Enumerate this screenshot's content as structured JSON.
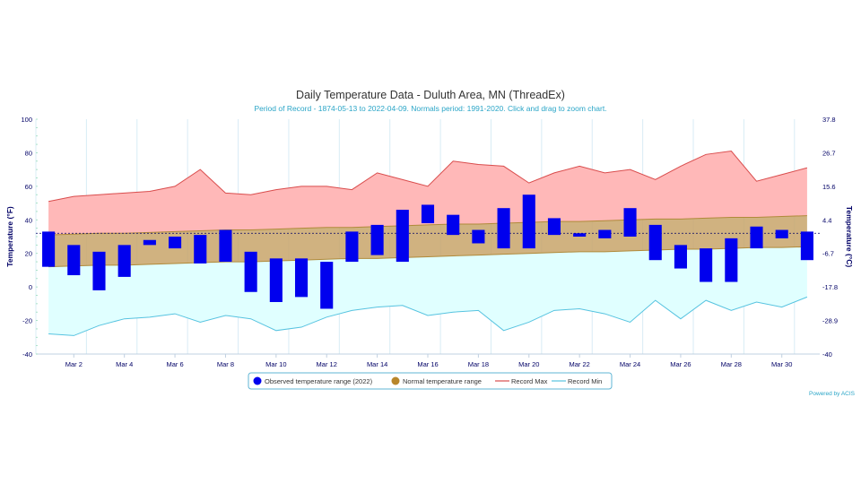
{
  "title": "Daily Temperature Data - Duluth Area, MN (ThreadEx)",
  "subtitle": "Period of Record - 1874-05-13 to 2022-04-09. Normals period: 1991-2020. Click and drag to zoom chart.",
  "credit": "Powered by ACIS",
  "colors": {
    "observed": "#0000ee",
    "normal_fill": "#c8a56a",
    "normal_line": "#b08a3a",
    "record_max_fill": "#ffb8b8",
    "record_max_line": "#d94c4c",
    "record_min_fill": "#e0ffff",
    "record_min_line": "#56c3e0",
    "axis_text": "#000066",
    "subtitle": "#2aa5c7",
    "grid": "#d8ecf5"
  },
  "chart_data": {
    "type": "area",
    "title": "Daily Temperature Data - Duluth Area, MN (ThreadEx)",
    "ylabel": "Temperature (°F)",
    "ylabel_right": "Temperature (°C)",
    "ylim": [
      -40,
      100
    ],
    "yticks": [
      -40,
      -20,
      0,
      20,
      40,
      60,
      80,
      100
    ],
    "yticks_right": [
      "-40",
      "-28.9",
      "-17.8",
      "-6.7",
      "4.4",
      "15.6",
      "26.7",
      "37.8"
    ],
    "x": [
      1,
      2,
      3,
      4,
      5,
      6,
      7,
      8,
      9,
      10,
      11,
      12,
      13,
      14,
      15,
      16,
      17,
      18,
      19,
      20,
      21,
      22,
      23,
      24,
      25,
      26,
      27,
      28,
      29,
      30,
      31
    ],
    "x_tick_labels": [
      "Mar 2",
      "Mar 4",
      "Mar 6",
      "Mar 8",
      "Mar 10",
      "Mar 12",
      "Mar 14",
      "Mar 16",
      "Mar 18",
      "Mar 20",
      "Mar 22",
      "Mar 24",
      "Mar 26",
      "Mar 28",
      "Mar 30"
    ],
    "x_tick_days": [
      2,
      4,
      6,
      8,
      10,
      12,
      14,
      16,
      18,
      20,
      22,
      24,
      26,
      28,
      30
    ],
    "series": [
      {
        "name": "Observed temperature range (2022)",
        "kind": "floating-bar",
        "high": [
          33,
          25,
          21,
          25,
          28,
          30,
          31,
          34,
          21,
          17,
          17,
          15,
          33,
          37,
          46,
          49,
          43,
          34,
          47,
          55,
          41,
          32,
          34,
          47,
          37,
          25,
          23,
          29,
          36,
          34,
          33
        ],
        "low": [
          12,
          7,
          -2,
          6,
          25,
          23,
          14,
          15,
          -3,
          -9,
          -6,
          -13,
          15,
          19,
          15,
          38,
          31,
          26,
          23,
          23,
          31,
          30,
          29,
          30,
          16,
          11,
          3,
          3,
          23,
          29,
          16
        ]
      },
      {
        "name": "Normal temperature range",
        "kind": "band",
        "high": [
          31,
          31.5,
          32,
          32,
          32.5,
          33,
          33.5,
          34,
          34,
          34.5,
          35,
          35.5,
          35.5,
          36,
          36.5,
          37,
          37.5,
          37.5,
          38,
          38.5,
          39,
          39,
          39.5,
          40,
          40.5,
          40.5,
          41,
          41.5,
          41.5,
          42,
          42.5
        ],
        "low": [
          12,
          12.5,
          13,
          13,
          13.5,
          14,
          14.5,
          15,
          15,
          15.5,
          16,
          16.5,
          17,
          17,
          17.5,
          18,
          18.5,
          19,
          19.5,
          20,
          20.5,
          21,
          21,
          21.5,
          22,
          22.5,
          22.5,
          23,
          23.5,
          23.5,
          24
        ]
      },
      {
        "name": "Record Max",
        "kind": "line",
        "values": [
          51,
          54,
          55,
          56,
          57,
          60,
          70,
          56,
          55,
          58,
          60,
          60,
          58,
          68,
          64,
          60,
          75,
          73,
          72,
          62,
          68,
          72,
          68,
          70,
          64,
          72,
          79,
          81,
          63,
          67,
          71
        ]
      },
      {
        "name": "Record Min",
        "kind": "line",
        "values": [
          -28,
          -29,
          -23,
          -19,
          -18,
          -16,
          -21,
          -17,
          -19,
          -26,
          -24,
          -18,
          -14,
          -12,
          -11,
          -17,
          -15,
          -14,
          -26,
          -21,
          -14,
          -13,
          -16,
          -21,
          -8,
          -19,
          -8,
          -14,
          -9,
          -12,
          -6
        ]
      }
    ],
    "legend_position": "bottom",
    "grid": true
  }
}
